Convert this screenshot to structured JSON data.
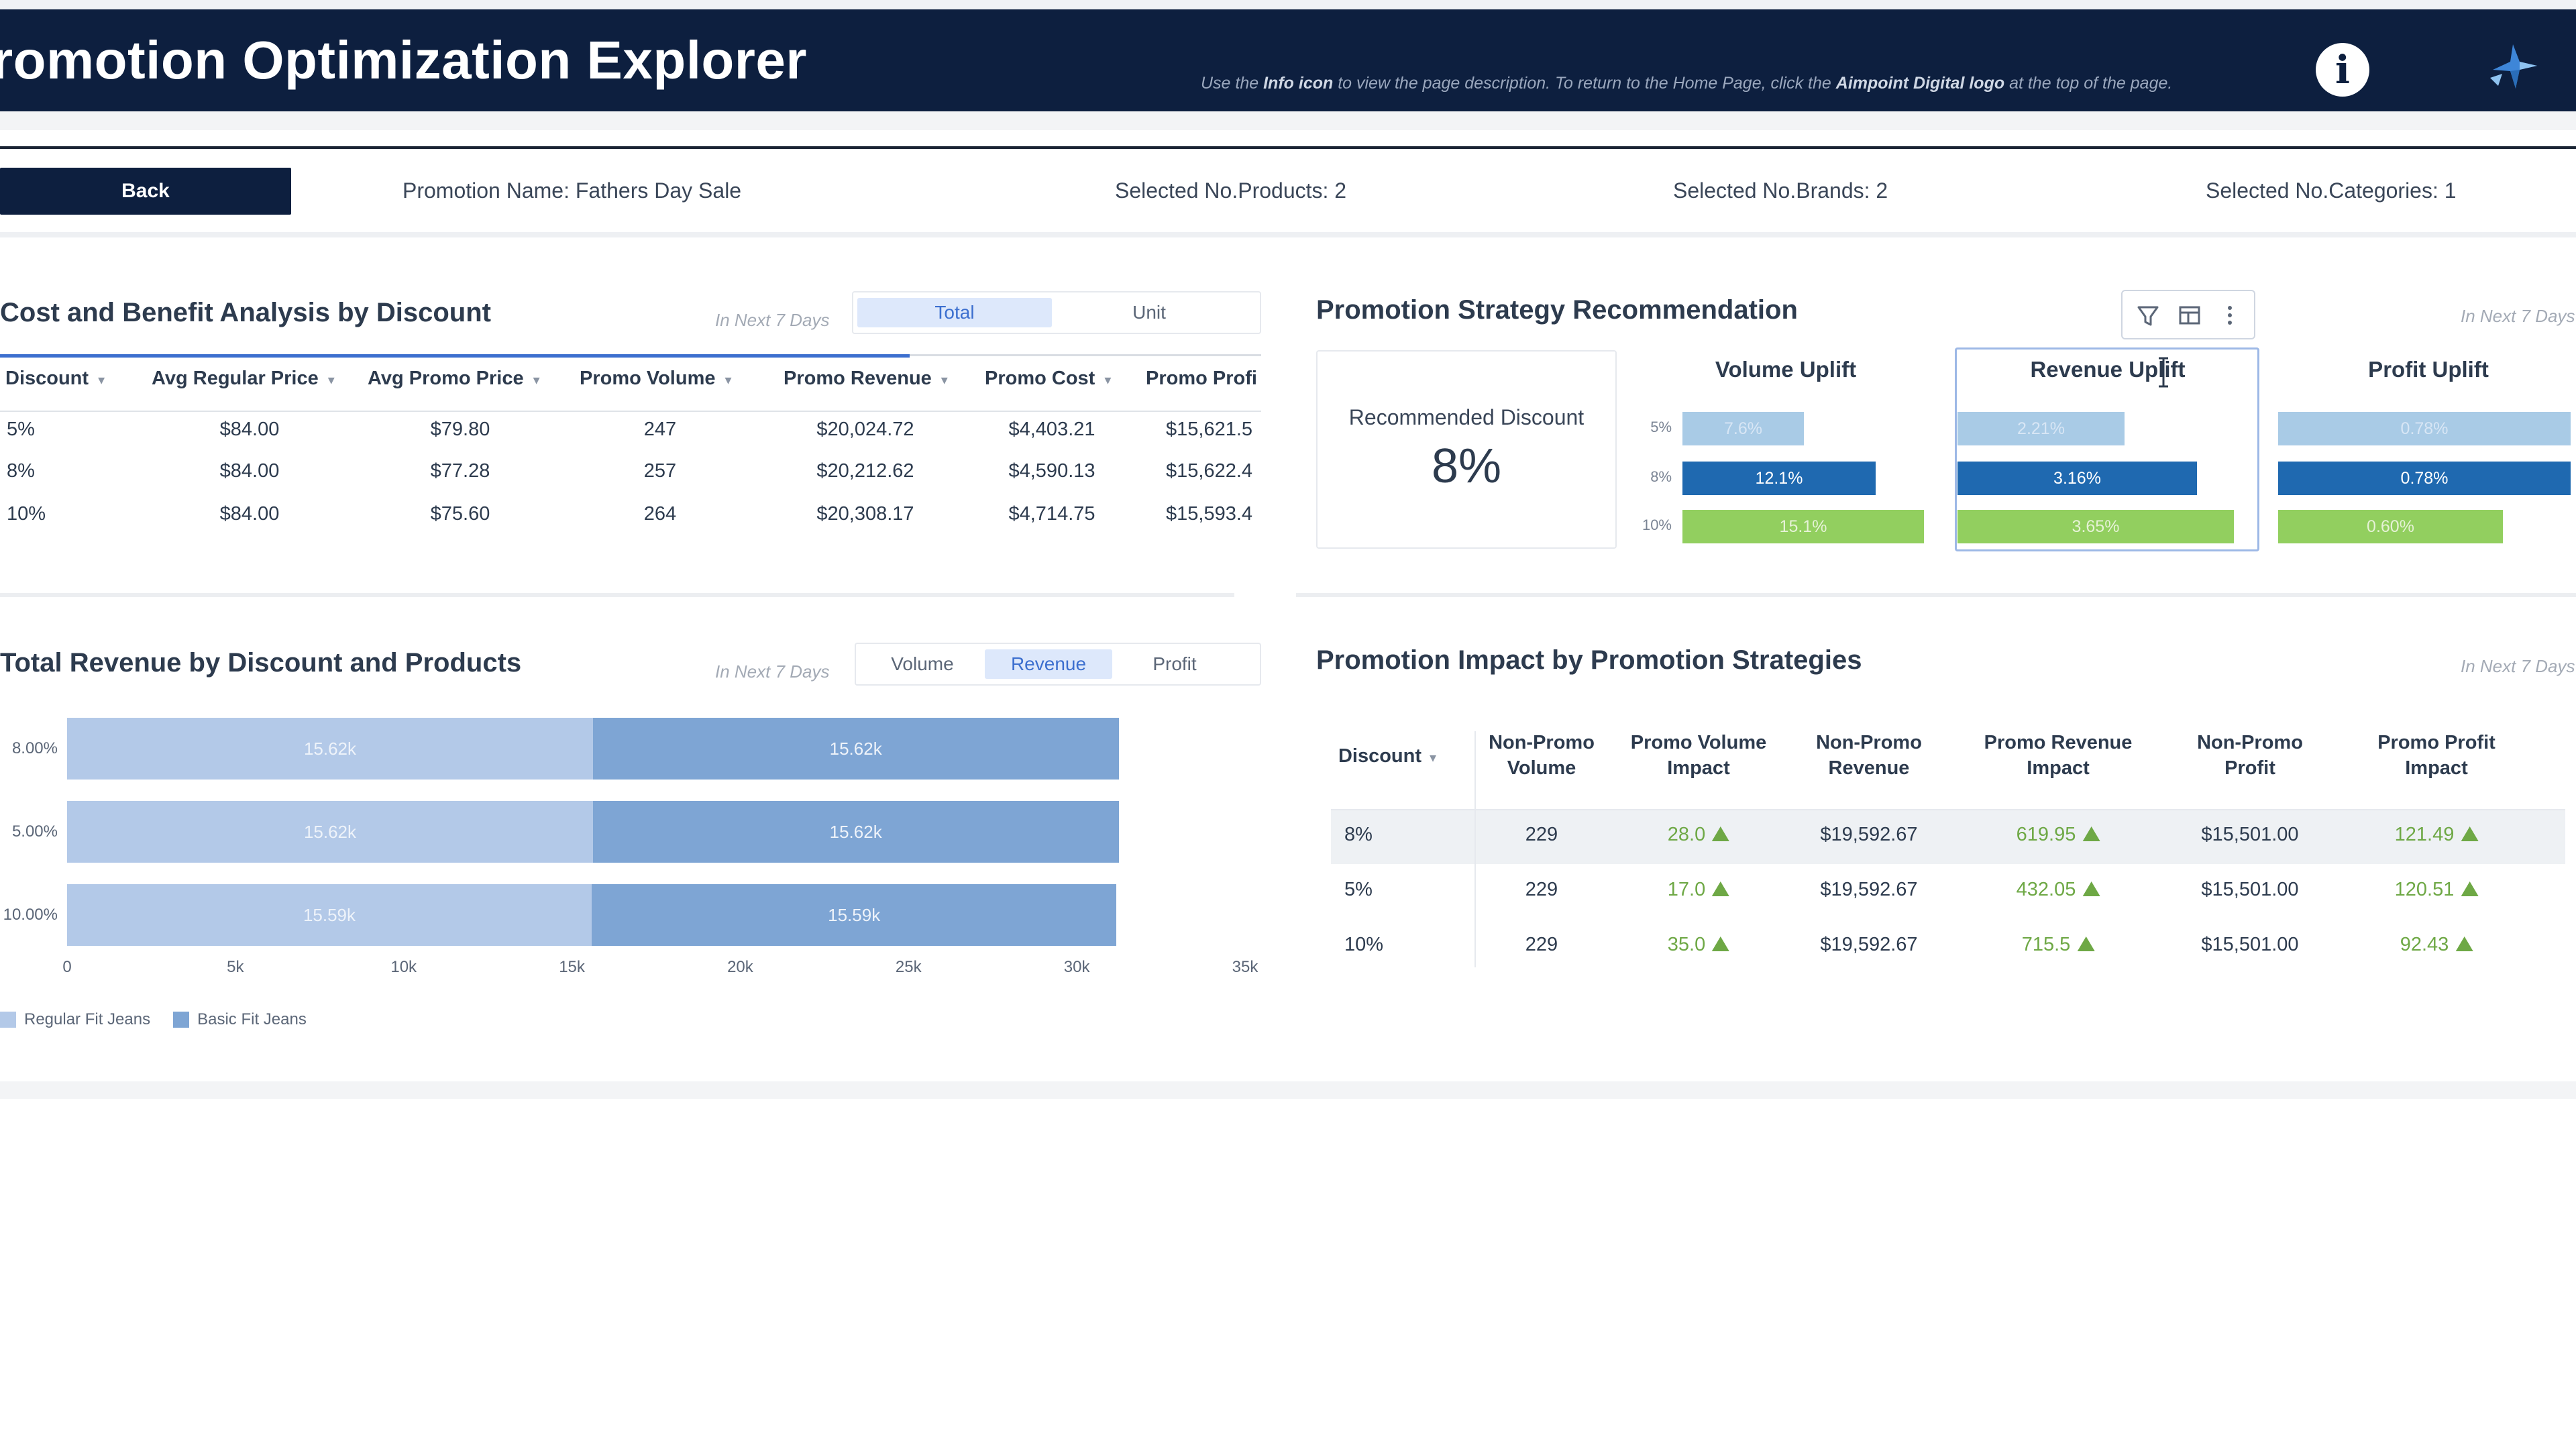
{
  "header": {
    "title": "romotion Optimization Explorer",
    "hint_prefix": "Use the ",
    "hint_info": "Info icon",
    "hint_mid": " to view the page description. To return to the Home Page, click the ",
    "hint_logo": "Aimpoint Digital logo",
    "hint_suffix": " at the top of the page.",
    "info_icon": "info-icon",
    "logo_icon": "aimpoint-digital-logo"
  },
  "infobar": {
    "back_label": "Back",
    "promotion": "Promotion Name: Fathers Day Sale",
    "products": "Selected No.Products: 2",
    "brands": "Selected No.Brands: 2",
    "categories": "Selected No.Categories: 1"
  },
  "cost_benefit": {
    "title": "Cost and Benefit Analysis by Discount",
    "period": "In Next 7 Days",
    "toggle": [
      "Total",
      "Unit"
    ],
    "active_toggle": "Total",
    "columns": [
      "Discount",
      "Avg Regular Price",
      "Avg Promo Price",
      "Promo Volume",
      "Promo Revenue",
      "Promo Cost",
      "Promo Profi"
    ],
    "rows": [
      [
        "5%",
        "$84.00",
        "$79.80",
        "247",
        "$20,024.72",
        "$4,403.21",
        "$15,621.5"
      ],
      [
        "8%",
        "$84.00",
        "$77.28",
        "257",
        "$20,212.62",
        "$4,590.13",
        "$15,622.4"
      ],
      [
        "10%",
        "$84.00",
        "$75.60",
        "264",
        "$20,308.17",
        "$4,714.75",
        "$15,593.4"
      ]
    ]
  },
  "strategy": {
    "title": "Promotion Strategy Recommendation",
    "period": "In Next 7 Days",
    "toolbar_icons": [
      "filter-icon",
      "table-icon",
      "more-options-icon"
    ],
    "recommended_label": "Recommended Discount",
    "recommended_value": "8%",
    "discounts": [
      "5%",
      "8%",
      "10%"
    ],
    "uplifts": [
      {
        "title": "Volume Uplift",
        "labels": [
          "7.6%",
          "12.1%",
          "15.1%"
        ],
        "values": [
          7.6,
          12.1,
          15.1
        ]
      },
      {
        "title": "Revenue Uplift",
        "labels": [
          "2.21%",
          "3.16%",
          "3.65%"
        ],
        "values": [
          2.21,
          3.16,
          3.65
        ]
      },
      {
        "title": "Profit Uplift",
        "labels": [
          "0.78%",
          "0.78%",
          "0.60%"
        ],
        "values": [
          0.78,
          0.78,
          0.6
        ]
      }
    ],
    "colors": {
      "pale_blue": "#a9cbe6",
      "dark_blue": "#1f69b0",
      "green": "#92cf5f"
    }
  },
  "revenue_chart": {
    "title": "Total Revenue by Discount and Products",
    "period": "In Next 7 Days",
    "toggle": [
      "Volume",
      "Revenue",
      "Profit"
    ],
    "active_toggle": "Revenue"
  },
  "chart_data": {
    "type": "bar",
    "orientation": "horizontal",
    "stacked": true,
    "categories": [
      "8.00%",
      "5.00%",
      "10.00%"
    ],
    "series": [
      {
        "name": "Regular Fit Jeans",
        "values": [
          15620,
          15620,
          15590
        ],
        "labels": [
          "15.62k",
          "15.62k",
          "15.59k"
        ],
        "color": "#b3c9e8"
      },
      {
        "name": "Basic Fit Jeans",
        "values": [
          15620,
          15620,
          15590
        ],
        "labels": [
          "15.62k",
          "15.62k",
          "15.59k"
        ],
        "color": "#7ea5d4"
      }
    ],
    "xlim": [
      0,
      35000
    ],
    "xticks": [
      "0",
      "5k",
      "10k",
      "15k",
      "20k",
      "25k",
      "30k",
      "35k"
    ],
    "legend": "bottom-left"
  },
  "impact": {
    "title": "Promotion Impact by Promotion Strategies",
    "period": "In Next 7 Days",
    "columns": [
      [
        "Discount"
      ],
      [
        "Non-Promo",
        "Volume"
      ],
      [
        "Promo Volume",
        "Impact"
      ],
      [
        "Non-Promo",
        "Revenue"
      ],
      [
        "Promo Revenue",
        "Impact"
      ],
      [
        "Non-Promo",
        "Profit"
      ],
      [
        "Promo Profit",
        "Impact"
      ]
    ],
    "rows": [
      [
        "8%",
        "229",
        "28.0",
        "$19,592.67",
        "619.95",
        "$15,501.00",
        "121.49"
      ],
      [
        "5%",
        "229",
        "17.0",
        "$19,592.67",
        "432.05",
        "$15,501.00",
        "120.51"
      ],
      [
        "10%",
        "229",
        "35.0",
        "$19,592.67",
        "715.5",
        "$15,501.00",
        "92.43"
      ]
    ],
    "positive_color": "#6ea845"
  }
}
